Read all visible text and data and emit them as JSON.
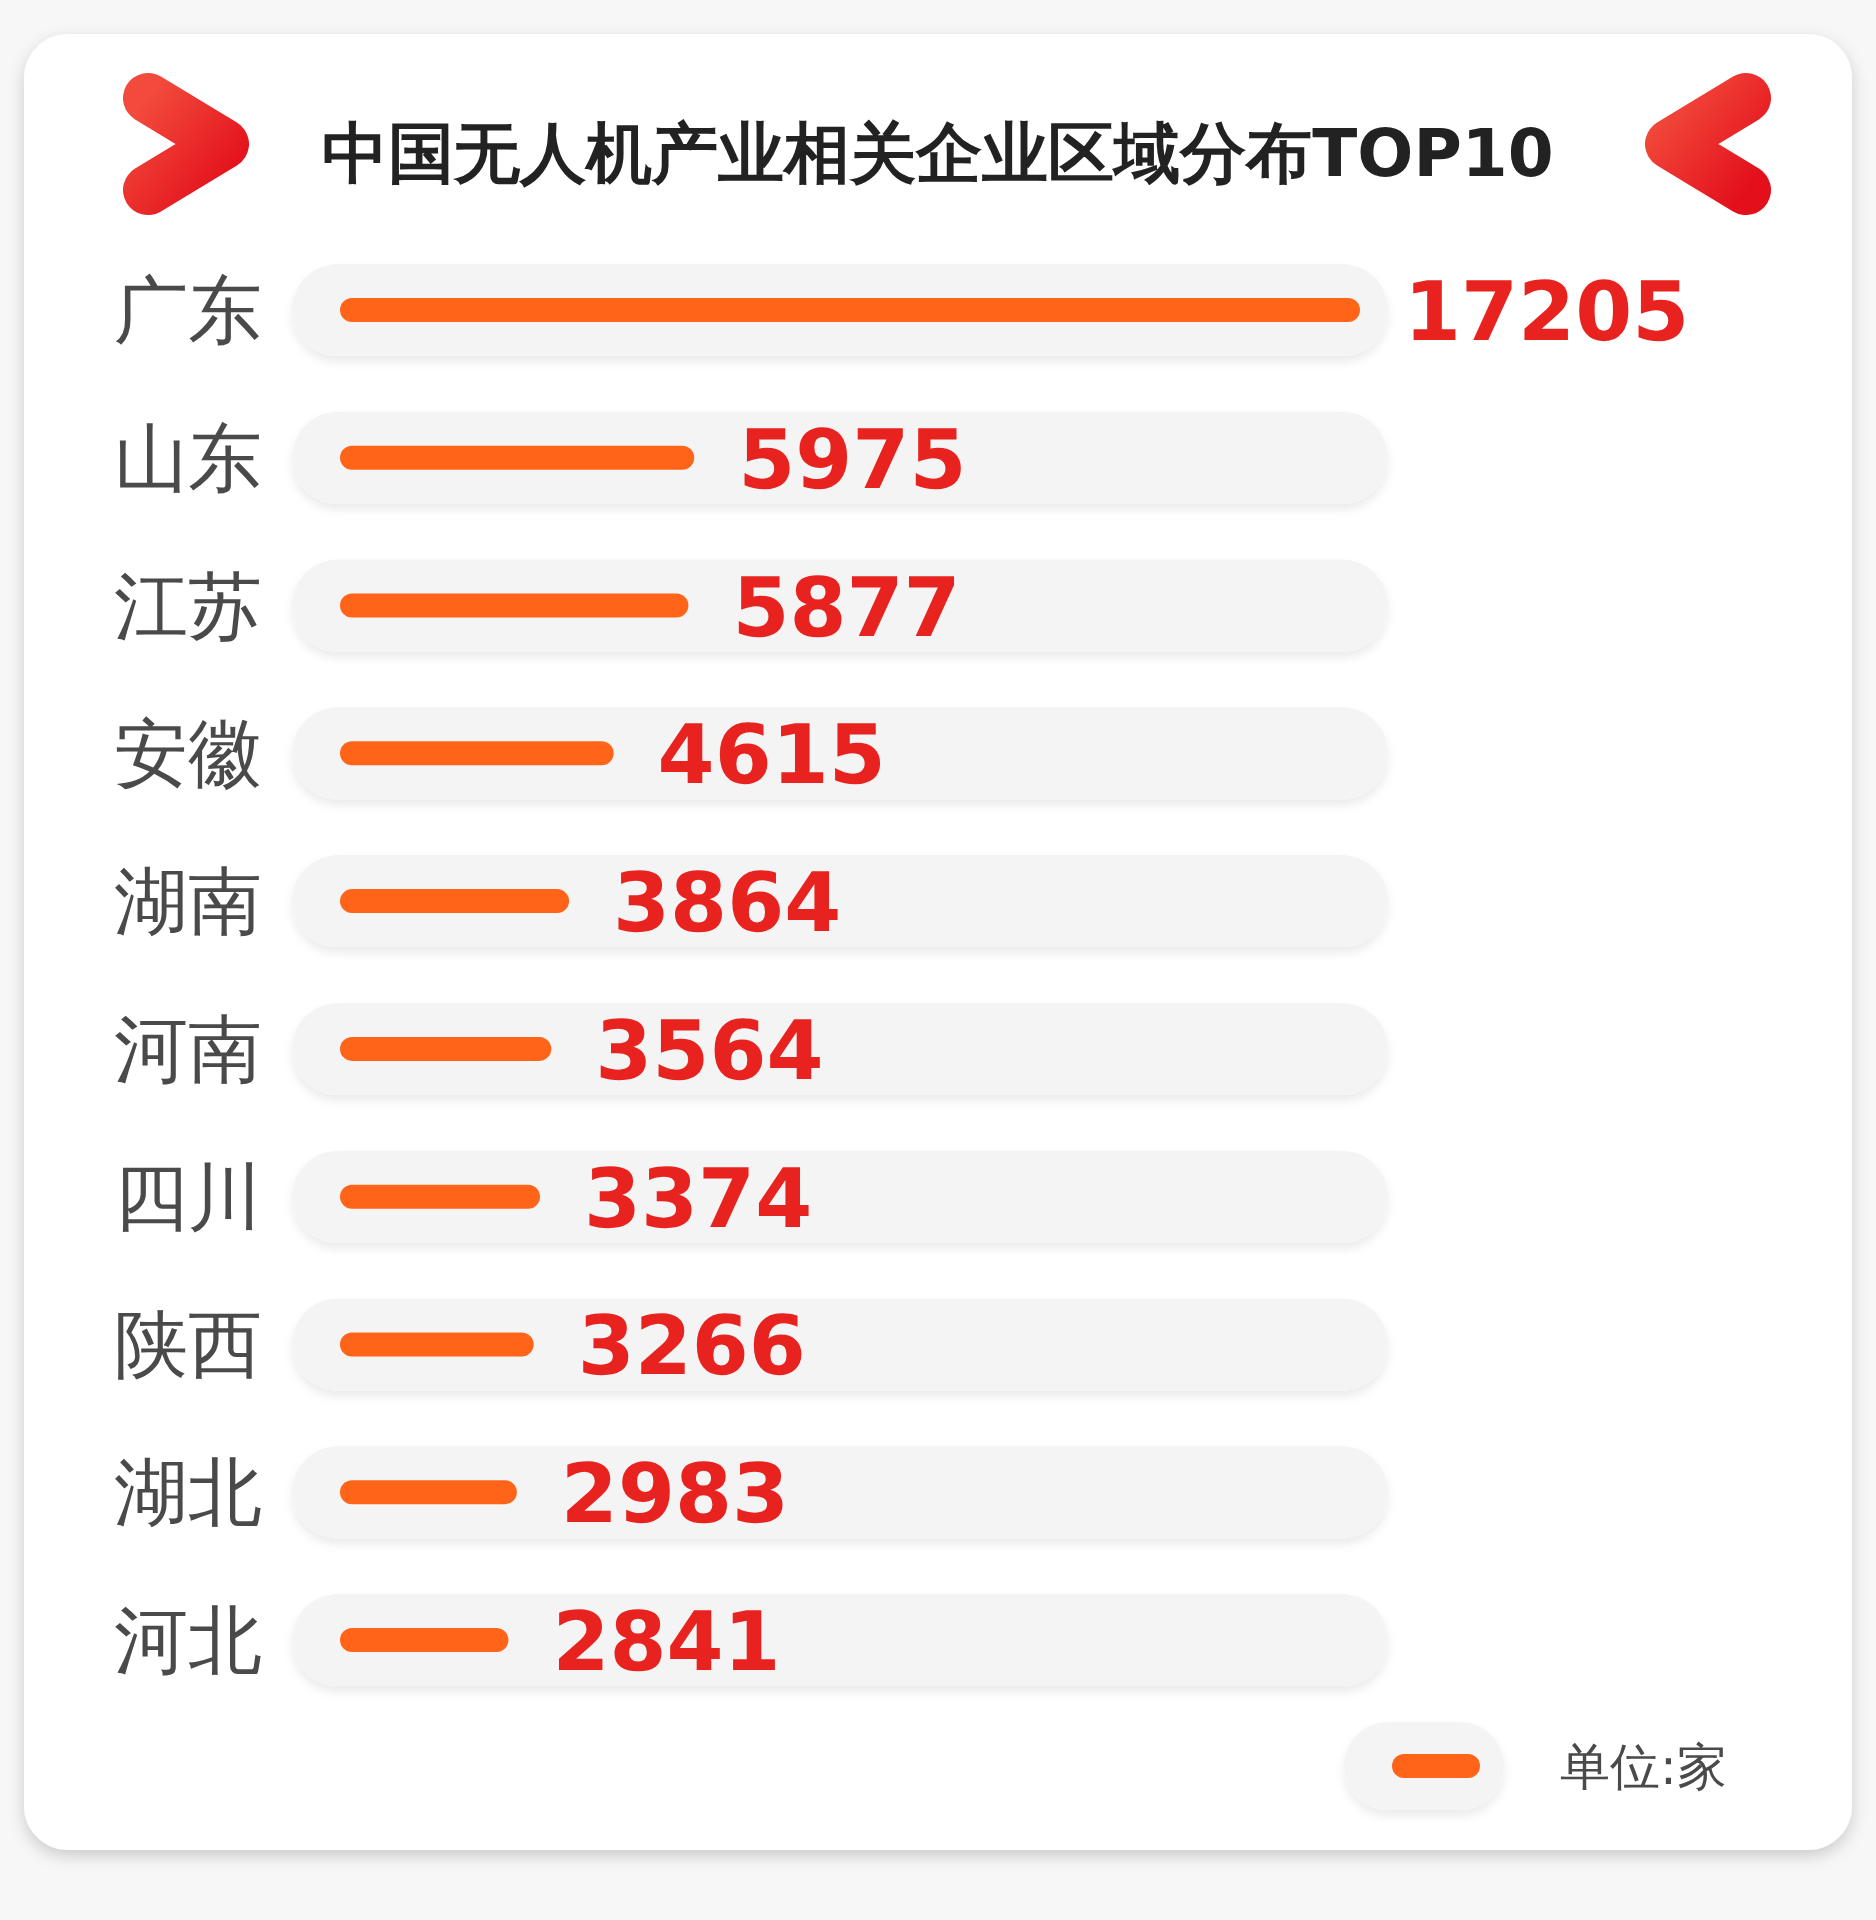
{
  "chart_data": {
    "type": "bar",
    "orientation": "horizontal",
    "title": "中国无人机产业相关企业区域分布TOP10",
    "categories": [
      "广东",
      "山东",
      "江苏",
      "安徽",
      "湖南",
      "河南",
      "四川",
      "陕西",
      "湖北",
      "河北"
    ],
    "series": [
      {
        "name": "单位:家",
        "color": "#ff6418",
        "values": [
          17205,
          5975,
          5877,
          4615,
          3864,
          3564,
          3374,
          3266,
          2983,
          2841
        ]
      }
    ],
    "data_labels": true,
    "legend": "bottom right"
  }
}
